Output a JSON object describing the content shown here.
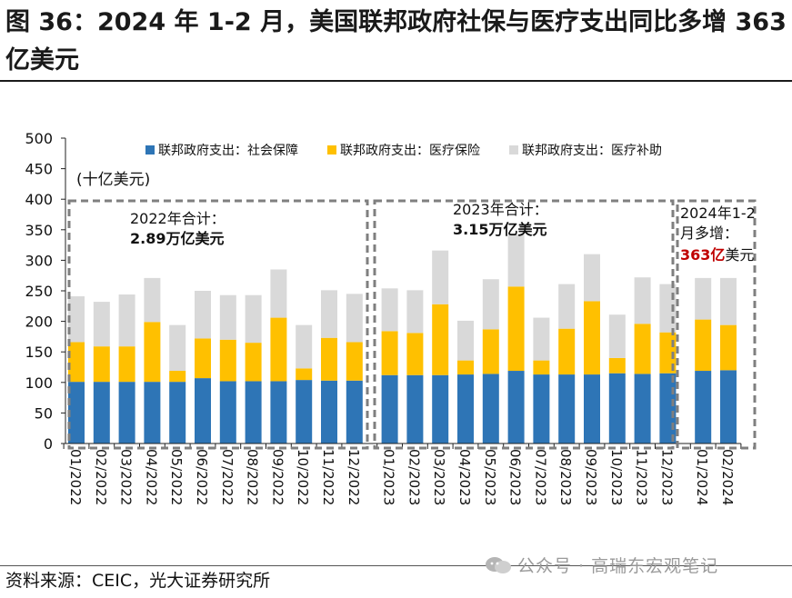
{
  "title": "图 36：2024 年 1-2 月，美国联邦政府社保与医疗支出同比多增 363 亿美元",
  "source": "资料来源：CEIC，光大证券研究所",
  "watermark": "公众号 · 高瑞东宏观笔记",
  "colors": {
    "social_security": "#2e75b6",
    "medicare": "#ffc000",
    "medicaid": "#d9d9d9",
    "box_border": "#7f7f7f",
    "highlight": "#c00000"
  },
  "chart_data": {
    "type": "bar",
    "stacked": true,
    "ylabel": "(十亿美元)",
    "ylim": [
      0,
      500
    ],
    "yticks": [
      0,
      50,
      100,
      150,
      200,
      250,
      300,
      350,
      400,
      450,
      500
    ],
    "grid": false,
    "legend_position": "top",
    "categories": [
      "01/2022",
      "02/2022",
      "03/2022",
      "04/2022",
      "05/2022",
      "06/2022",
      "07/2022",
      "08/2022",
      "09/2022",
      "10/2022",
      "11/2022",
      "12/2022",
      "01/2023",
      "02/2023",
      "03/2023",
      "04/2023",
      "05/2023",
      "06/2023",
      "07/2023",
      "08/2023",
      "09/2023",
      "10/2023",
      "11/2023",
      "12/2023",
      "01/2024",
      "02/2024"
    ],
    "series": [
      {
        "name": "联邦政府支出：社会保障",
        "color": "#2e75b6",
        "values": [
          101,
          101,
          101,
          101,
          101,
          107,
          102,
          102,
          102,
          104,
          103,
          103,
          112,
          112,
          112,
          113,
          114,
          119,
          113,
          113,
          113,
          115,
          114,
          115,
          119,
          120
        ]
      },
      {
        "name": "联邦政府支出：医疗保险",
        "color": "#ffc000",
        "values": [
          65,
          58,
          58,
          98,
          18,
          65,
          68,
          63,
          104,
          19,
          70,
          63,
          72,
          69,
          116,
          23,
          73,
          138,
          23,
          75,
          120,
          25,
          82,
          67,
          84,
          74
        ]
      },
      {
        "name": "联邦政府支出：医疗补助",
        "color": "#d9d9d9",
        "values": [
          75,
          73,
          85,
          72,
          75,
          78,
          73,
          78,
          79,
          71,
          78,
          79,
          70,
          70,
          88,
          65,
          82,
          85,
          70,
          73,
          77,
          71,
          76,
          79,
          68,
          77
        ]
      }
    ],
    "annotations": [
      {
        "group": "2022",
        "line1": "2022年合计：",
        "line2": "2.89万亿美元",
        "from": "01/2022",
        "to": "12/2022"
      },
      {
        "group": "2023",
        "line1": "2023年合计：",
        "line2": "3.15万亿美元",
        "from": "01/2023",
        "to": "12/2023"
      },
      {
        "group": "2024",
        "line1": "2024年1-2",
        "line2": "月多增：",
        "highlight": "363亿",
        "suffix": "美元",
        "from": "01/2024",
        "to": "02/2024"
      }
    ]
  }
}
